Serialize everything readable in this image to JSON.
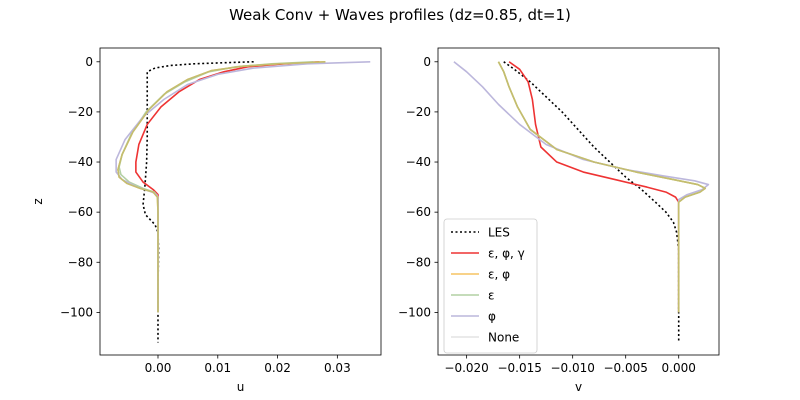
{
  "title": "Weak Conv + Waves profiles (dz=0.85, dt=1)",
  "chart_data": [
    {
      "type": "line",
      "xlabel": "u",
      "ylabel": "z",
      "xlim": [
        -0.0097,
        0.0373
      ],
      "ylim": [
        -117,
        5.5
      ],
      "xticks": [
        0.0,
        0.01,
        0.02,
        0.03
      ],
      "xtick_labels": [
        "0.00",
        "0.01",
        "0.02",
        "0.03"
      ],
      "yticks": [
        0,
        -20,
        -40,
        -60,
        -80,
        -100
      ],
      "ytick_labels": [
        "0",
        "−20",
        "−40",
        "−60",
        "−80",
        "−100"
      ],
      "grid": false,
      "series": [
        {
          "name": "LES",
          "color": "#000000",
          "dash": "dotted",
          "x": [
            0.016,
            0.012,
            0.006,
            0.002,
            -0.0005,
            -0.0018,
            -0.0018,
            -0.0018,
            -0.0018,
            -0.0019,
            -0.0022,
            -0.0025,
            -0.0021,
            -0.0013,
            -0.0005,
            0.0,
            0.0001,
            0.0,
            0.0,
            0.0
          ],
          "y": [
            0,
            -0.3,
            -0.8,
            -1.5,
            -2.5,
            -4,
            -10,
            -20,
            -30,
            -40,
            -50,
            -57,
            -61,
            -63,
            -65,
            -68,
            -75,
            -90,
            -105,
            -112
          ]
        },
        {
          "name": "ε, φ, γ",
          "color": "#ee3333",
          "dash": "solid",
          "x": [
            0.027,
            0.02,
            0.015,
            0.011,
            0.007,
            0.0035,
            0.0005,
            -0.0018,
            -0.0032,
            -0.0037,
            -0.0037,
            -0.0025,
            -0.0008,
            0.0,
            0.0,
            0.0,
            0.0
          ],
          "y": [
            0,
            -1,
            -2,
            -4,
            -7,
            -12,
            -18,
            -25,
            -33,
            -40,
            -44,
            -48,
            -51,
            -53,
            -60,
            -80,
            -100
          ]
        },
        {
          "name": "ε, φ",
          "color": "#f6c462",
          "dash": "solid",
          "x": [
            0.028,
            0.02,
            0.014,
            0.009,
            0.005,
            0.0015,
            -0.0015,
            -0.0042,
            -0.006,
            -0.0067,
            -0.0065,
            -0.0052,
            -0.003,
            -0.0008,
            -0.0001,
            0.0,
            0.0,
            0.0
          ],
          "y": [
            0,
            -0.8,
            -1.8,
            -3.5,
            -7,
            -12,
            -19,
            -28,
            -37,
            -43,
            -46,
            -48.5,
            -50.5,
            -52,
            -54,
            -60,
            -80,
            -100
          ]
        },
        {
          "name": "ε",
          "color": "#b2d0a4",
          "dash": "solid",
          "x": [
            0.026,
            0.019,
            0.013,
            0.0085,
            0.0045,
            0.001,
            -0.002,
            -0.0045,
            -0.006,
            -0.0065,
            -0.0062,
            -0.0048,
            -0.0025,
            -0.0006,
            0.0,
            0.0,
            0.0
          ],
          "y": [
            0,
            -0.8,
            -2,
            -4,
            -8,
            -13,
            -20,
            -29,
            -37,
            -42,
            -45,
            -48,
            -50.5,
            -52,
            -54,
            -80,
            -100
          ]
        },
        {
          "name": "φ",
          "color": "#bcb7dc",
          "dash": "solid",
          "x": [
            0.0355,
            0.025,
            0.016,
            0.01,
            0.005,
            0.001,
            -0.0025,
            -0.0055,
            -0.007,
            -0.007,
            -0.006,
            -0.0035,
            -0.001,
            -0.0002,
            0.0,
            0.0,
            0.0
          ],
          "y": [
            0,
            -0.8,
            -2.5,
            -5,
            -9,
            -15,
            -22,
            -31,
            -39,
            -44,
            -47,
            -50,
            -52,
            -53,
            -55,
            -80,
            -100
          ]
        },
        {
          "name": "None",
          "color": "#e3e3e3",
          "dash": "solid",
          "x": [],
          "y": []
        },
        {
          "name": "",
          "color": "#c4bd6e",
          "dash": "solid",
          "x": [
            0.028,
            0.02,
            0.014,
            0.009,
            0.005,
            0.0015,
            -0.0015,
            -0.0042,
            -0.006,
            -0.0067,
            -0.0065,
            -0.0052,
            -0.003,
            -0.0008,
            -0.0001,
            0.0,
            0.0,
            0.0
          ],
          "y": [
            0,
            -0.8,
            -1.8,
            -3.5,
            -7,
            -12,
            -19,
            -28,
            -37,
            -43,
            -46,
            -48.5,
            -50.5,
            -52,
            -54,
            -60,
            -80,
            -100
          ]
        }
      ]
    },
    {
      "type": "line",
      "xlabel": "v",
      "ylabel": "",
      "xlim": [
        -0.0227,
        0.0038
      ],
      "ylim": [
        -117,
        5.5
      ],
      "xticks": [
        -0.02,
        -0.015,
        -0.01,
        -0.005,
        0.0
      ],
      "xtick_labels": [
        "−0.020",
        "−0.015",
        "−0.010",
        "−0.005",
        "0.000"
      ],
      "yticks": [
        0,
        -20,
        -40,
        -60,
        -80,
        -100
      ],
      "ytick_labels": [
        "0",
        "−20",
        "−40",
        "−60",
        "−80",
        "−100"
      ],
      "grid": false,
      "series": [
        {
          "name": "LES",
          "color": "#000000",
          "dash": "dotted",
          "x": [
            -0.0165,
            -0.0155,
            -0.014,
            -0.0125,
            -0.011,
            -0.0095,
            -0.008,
            -0.0065,
            -0.005,
            -0.0035,
            -0.0022,
            -0.0012,
            -0.0005,
            -0.0002,
            0.0,
            0.0,
            0.0
          ],
          "y": [
            0,
            -3,
            -8,
            -14,
            -20,
            -27,
            -34,
            -40,
            -46,
            -51,
            -56,
            -60,
            -64,
            -68,
            -75,
            -95,
            -112
          ]
        },
        {
          "name": "ε, φ, γ",
          "color": "#ee3333",
          "dash": "solid",
          "x": [
            -0.016,
            -0.015,
            -0.0142,
            -0.0138,
            -0.0135,
            -0.013,
            -0.0115,
            -0.009,
            -0.006,
            -0.003,
            -0.0012,
            -0.0003,
            0.0,
            0.0,
            0.0
          ],
          "y": [
            0,
            -3,
            -8,
            -15,
            -25,
            -34,
            -40,
            -44,
            -47,
            -50,
            -52,
            -54,
            -56,
            -80,
            -100
          ]
        },
        {
          "name": "ε, φ",
          "color": "#f6c462",
          "dash": "solid",
          "x": [
            -0.017,
            -0.0165,
            -0.016,
            -0.0152,
            -0.014,
            -0.0115,
            -0.008,
            -0.004,
            -0.0005,
            0.0018,
            0.0025,
            0.002,
            0.0006,
            0.0,
            0.0,
            0.0
          ],
          "y": [
            0,
            -4,
            -10,
            -18,
            -27,
            -35,
            -40,
            -44,
            -47,
            -49,
            -50.5,
            -52,
            -54,
            -56,
            -80,
            -100
          ]
        },
        {
          "name": "ε",
          "color": "#b2d0a4",
          "dash": "solid",
          "x": [
            -0.017,
            -0.0165,
            -0.016,
            -0.0152,
            -0.014,
            -0.0115,
            -0.008,
            -0.004,
            -0.0005,
            0.0018,
            0.0025,
            0.002,
            0.0006,
            0.0,
            0.0,
            0.0
          ],
          "y": [
            0,
            -4,
            -10,
            -18,
            -27,
            -35,
            -40,
            -44,
            -47,
            -49,
            -50.5,
            -52,
            -54,
            -56,
            -80,
            -100
          ]
        },
        {
          "name": "φ",
          "color": "#bcb7dc",
          "dash": "solid",
          "x": [
            -0.0212,
            -0.02,
            -0.0185,
            -0.017,
            -0.015,
            -0.0125,
            -0.009,
            -0.005,
            -0.0015,
            0.0015,
            0.0028,
            0.0022,
            0.0008,
            0.0,
            0.0,
            0.0
          ],
          "y": [
            0,
            -4,
            -10,
            -17,
            -25,
            -33,
            -39,
            -43,
            -45.5,
            -47.5,
            -49,
            -51,
            -53,
            -55,
            -80,
            -100
          ]
        },
        {
          "name": "None",
          "color": "#e3e3e3",
          "dash": "solid",
          "x": [],
          "y": []
        },
        {
          "name": "",
          "color": "#c4bd6e",
          "dash": "solid",
          "x": [
            -0.017,
            -0.0165,
            -0.016,
            -0.0152,
            -0.014,
            -0.0115,
            -0.008,
            -0.004,
            -0.0005,
            0.0018,
            0.0025,
            0.002,
            0.0006,
            0.0,
            0.0,
            0.0
          ],
          "y": [
            0,
            -4,
            -10,
            -18,
            -27,
            -35,
            -40,
            -44,
            -47,
            -49,
            -50.5,
            -52,
            -54,
            -56,
            -80,
            -100
          ]
        }
      ],
      "legend": {
        "placement": "lower-left",
        "entries": [
          "LES",
          "ε, φ, γ",
          "ε, φ",
          "ε",
          "φ",
          "None"
        ]
      }
    }
  ]
}
